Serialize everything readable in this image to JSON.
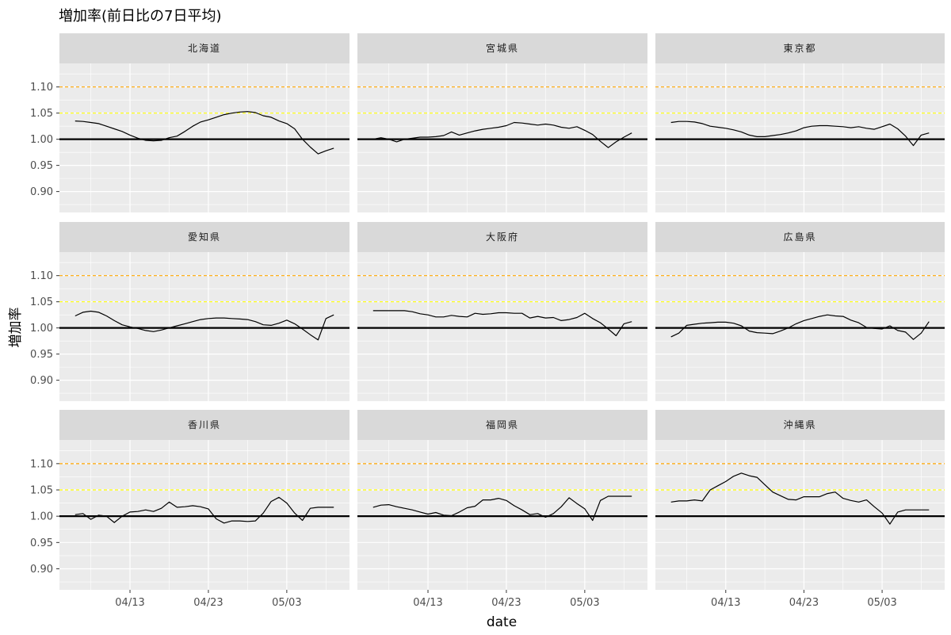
{
  "chart_data": {
    "type": "line",
    "title": "増加率(前日比の7日平均)",
    "xlabel": "date",
    "ylabel": "増加率",
    "x_tick_labels": [
      "04/13",
      "04/23",
      "05/03"
    ],
    "x_ticks": [
      "2020-04-13",
      "2020-04-23",
      "2020-05-03"
    ],
    "x_range": [
      "2020-04-04",
      "2020-05-11"
    ],
    "y_ticks": [
      0.9,
      0.95,
      1.0,
      1.05,
      1.1
    ],
    "y_tick_labels": [
      "0.90",
      "0.95",
      "1.00",
      "1.05",
      "1.10"
    ],
    "ylim": [
      0.86,
      1.145
    ],
    "grid": true,
    "reference_lines": [
      {
        "y": 1.1,
        "style": "dashed",
        "color": "#FFA500"
      },
      {
        "y": 1.05,
        "style": "dashed",
        "color": "#FFFF00"
      },
      {
        "y": 1.0,
        "style": "solid",
        "color": "#000000"
      }
    ],
    "x": [
      "2020-04-06",
      "2020-04-07",
      "2020-04-08",
      "2020-04-09",
      "2020-04-10",
      "2020-04-11",
      "2020-04-12",
      "2020-04-13",
      "2020-04-14",
      "2020-04-15",
      "2020-04-16",
      "2020-04-17",
      "2020-04-18",
      "2020-04-19",
      "2020-04-20",
      "2020-04-21",
      "2020-04-22",
      "2020-04-23",
      "2020-04-24",
      "2020-04-25",
      "2020-04-26",
      "2020-04-27",
      "2020-04-28",
      "2020-04-29",
      "2020-04-30",
      "2020-05-01",
      "2020-05-02",
      "2020-05-03",
      "2020-05-04",
      "2020-05-05",
      "2020-05-06",
      "2020-05-07",
      "2020-05-08",
      "2020-05-09"
    ],
    "panels": [
      {
        "name": "北海道",
        "values": [
          1.035,
          1.034,
          1.032,
          1.03,
          1.025,
          1.02,
          1.015,
          1.008,
          1.002,
          0.998,
          0.997,
          0.998,
          1.003,
          1.006,
          1.015,
          1.025,
          1.033,
          1.037,
          1.042,
          1.047,
          1.05,
          1.052,
          1.053,
          1.051,
          1.045,
          1.042,
          1.035,
          1.03,
          1.02,
          1.0,
          0.985,
          0.972,
          0.978,
          0.983
        ]
      },
      {
        "name": "宮城県",
        "values": [
          1.0,
          1.003,
          1.0,
          0.995,
          1.0,
          1.002,
          1.004,
          1.004,
          1.005,
          1.007,
          1.014,
          1.008,
          1.012,
          1.016,
          1.019,
          1.021,
          1.023,
          1.026,
          1.032,
          1.031,
          1.029,
          1.027,
          1.029,
          1.027,
          1.023,
          1.021,
          1.024,
          1.017,
          1.009,
          0.996,
          0.984,
          0.995,
          1.004,
          1.012
        ]
      },
      {
        "name": "東京都",
        "values": [
          1.032,
          1.034,
          1.034,
          1.033,
          1.03,
          1.025,
          1.023,
          1.021,
          1.018,
          1.014,
          1.008,
          1.005,
          1.005,
          1.007,
          1.009,
          1.012,
          1.016,
          1.022,
          1.025,
          1.026,
          1.026,
          1.025,
          1.024,
          1.022,
          1.024,
          1.021,
          1.019,
          1.024,
          1.029,
          1.02,
          1.006,
          0.988,
          1.008,
          1.012
        ]
      },
      {
        "name": "愛知県",
        "values": [
          1.023,
          1.03,
          1.032,
          1.03,
          1.023,
          1.014,
          1.006,
          1.002,
          0.999,
          0.995,
          0.993,
          0.996,
          1.0,
          1.004,
          1.008,
          1.012,
          1.016,
          1.018,
          1.019,
          1.019,
          1.018,
          1.017,
          1.016,
          1.012,
          1.006,
          1.005,
          1.009,
          1.015,
          1.008,
          0.998,
          0.987,
          0.977,
          1.018,
          1.025
        ]
      },
      {
        "name": "大阪府",
        "values": [
          1.033,
          1.033,
          1.033,
          1.033,
          1.033,
          1.031,
          1.027,
          1.025,
          1.021,
          1.021,
          1.024,
          1.022,
          1.021,
          1.028,
          1.026,
          1.027,
          1.029,
          1.029,
          1.028,
          1.028,
          1.019,
          1.022,
          1.019,
          1.02,
          1.014,
          1.016,
          1.02,
          1.028,
          1.018,
          1.01,
          0.998,
          0.985,
          1.008,
          1.012
        ]
      },
      {
        "name": "広島県",
        "values": [
          0.983,
          0.99,
          1.005,
          1.007,
          1.009,
          1.01,
          1.011,
          1.011,
          1.009,
          1.004,
          0.994,
          0.991,
          0.99,
          0.989,
          0.994,
          1.0,
          1.008,
          1.014,
          1.018,
          1.022,
          1.025,
          1.023,
          1.022,
          1.015,
          1.01,
          1.001,
          0.999,
          0.998,
          1.004,
          0.995,
          0.992,
          0.978,
          0.99,
          1.012
        ]
      },
      {
        "name": "香川県",
        "values": [
          1.003,
          1.005,
          0.994,
          1.002,
          1.0,
          0.988,
          1.0,
          1.008,
          1.009,
          1.012,
          1.009,
          1.015,
          1.027,
          1.017,
          1.018,
          1.02,
          1.018,
          1.014,
          0.995,
          0.987,
          0.991,
          0.991,
          0.99,
          0.991,
          1.006,
          1.028,
          1.036,
          1.025,
          1.006,
          0.992,
          1.015,
          1.017,
          1.017,
          1.017
        ]
      },
      {
        "name": "福岡県",
        "values": [
          1.017,
          1.021,
          1.022,
          1.018,
          1.015,
          1.012,
          1.008,
          1.004,
          1.007,
          1.002,
          1.001,
          1.008,
          1.016,
          1.019,
          1.031,
          1.031,
          1.034,
          1.03,
          1.02,
          1.012,
          1.003,
          1.005,
          0.998,
          1.005,
          1.018,
          1.035,
          1.024,
          1.014,
          0.992,
          1.03,
          1.038,
          1.038,
          1.038,
          1.038
        ]
      },
      {
        "name": "沖縄県",
        "values": [
          1.027,
          1.029,
          1.029,
          1.031,
          1.029,
          1.05,
          1.058,
          1.066,
          1.076,
          1.082,
          1.077,
          1.074,
          1.06,
          1.046,
          1.039,
          1.032,
          1.031,
          1.037,
          1.037,
          1.037,
          1.043,
          1.046,
          1.034,
          1.03,
          1.027,
          1.031,
          1.018,
          1.006,
          0.985,
          1.008,
          1.012,
          1.012,
          1.012,
          1.012
        ]
      }
    ]
  }
}
